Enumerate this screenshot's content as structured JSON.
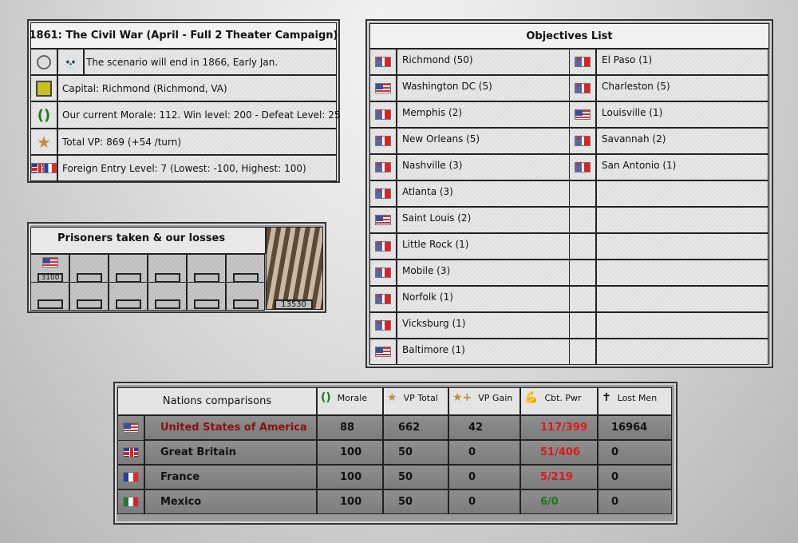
{
  "scenario": {
    "title": "1861: The Civil War (April - Full 2 Theater Campaign)",
    "end_text": "The scenario will end in 1866, Early Jan.",
    "capital": "Capital: Richmond (Richmond, VA)",
    "morale": "Our current Morale: 112. Win level: 200 - Defeat Level: 25",
    "vp": "Total VP: 869 (+54 /turn)",
    "foreign": "Foreign Entry Level: 7  (Lowest: -100, Highest: 100)"
  },
  "prisoners": {
    "title": "Prisoners taken & our losses",
    "usa_prisoners": "3100",
    "our_losses": "13530"
  },
  "objectives": {
    "title": "Objectives List",
    "left": [
      {
        "flag": "csa",
        "name": "Richmond (50)"
      },
      {
        "flag": "usa",
        "name": "Washington DC (5)"
      },
      {
        "flag": "csa",
        "name": "Memphis (2)"
      },
      {
        "flag": "csa",
        "name": "New Orleans (5)"
      },
      {
        "flag": "csa",
        "name": "Nashville (3)"
      },
      {
        "flag": "csa",
        "name": "Atlanta (3)"
      },
      {
        "flag": "usa",
        "name": "Saint Louis (2)"
      },
      {
        "flag": "csa",
        "name": "Little Rock (1)"
      },
      {
        "flag": "csa",
        "name": "Mobile (3)"
      },
      {
        "flag": "csa",
        "name": "Norfolk (1)"
      },
      {
        "flag": "csa",
        "name": "Vicksburg (1)"
      },
      {
        "flag": "usa",
        "name": "Baltimore (1)"
      }
    ],
    "right": [
      {
        "flag": "csa",
        "name": "El Paso (1)"
      },
      {
        "flag": "csa",
        "name": "Charleston (5)"
      },
      {
        "flag": "usa",
        "name": "Louisville (1)"
      },
      {
        "flag": "csa",
        "name": "Savannah (2)"
      },
      {
        "flag": "csa",
        "name": "San Antonio (1)"
      }
    ]
  },
  "nations": {
    "title": "Nations comparisons",
    "headers": [
      "Morale",
      "VP Total",
      "VP Gain",
      "Cbt. Pwr",
      "Lost Men"
    ],
    "rows": [
      {
        "flag": "usa",
        "name": "United States of America",
        "name_color": "#8b1010",
        "morale": "88",
        "vp_total": "662",
        "vp_gain": "42",
        "cbt": "117/399",
        "cbt_color": "#e01818",
        "lost": "16964"
      },
      {
        "flag": "uk",
        "name": "Great Britain",
        "morale": "100",
        "vp_total": "50",
        "vp_gain": "0",
        "cbt": "51/406",
        "cbt_color": "#e01818",
        "lost": "0"
      },
      {
        "flag": "fr",
        "name": "France",
        "morale": "100",
        "vp_total": "50",
        "vp_gain": "0",
        "cbt": "5/219",
        "cbt_color": "#e01818",
        "lost": "0"
      },
      {
        "flag": "mx",
        "name": "Mexico",
        "morale": "100",
        "vp_total": "50",
        "vp_gain": "0",
        "cbt": "6/0",
        "cbt_color": "#1a7a1a",
        "lost": "0"
      }
    ]
  }
}
